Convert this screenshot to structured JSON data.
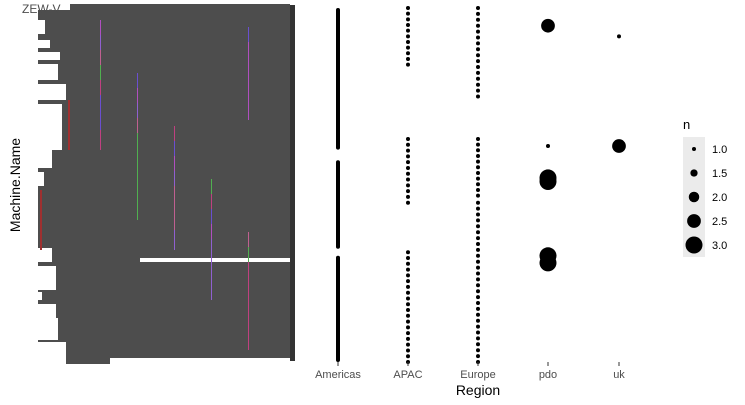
{
  "chart_data": {
    "type": "scatter",
    "xlabel": "Region",
    "ylabel": "Machine.Name",
    "categories": [
      "Americas",
      "APAC",
      "Europe",
      "pdo",
      "uk"
    ],
    "y_top_label": "ZEW-V",
    "legend": {
      "title": "n",
      "position": "right",
      "entries": [
        {
          "label": "1.0",
          "value": 1.0
        },
        {
          "label": "1.5",
          "value": 1.5
        },
        {
          "label": "2.0",
          "value": 2.0
        },
        {
          "label": "2.5",
          "value": 2.5
        },
        {
          "label": "3.0",
          "value": 3.0
        }
      ]
    },
    "size_range": [
      1.0,
      3.0
    ],
    "y_range": [
      0,
      1
    ],
    "grid": false,
    "points": [
      {
        "category": "pdo",
        "y": 0.95,
        "n": 2.5
      },
      {
        "category": "pdo",
        "y": 0.61,
        "n": 1.0
      },
      {
        "category": "pdo",
        "y": 0.52,
        "n": 3.0
      },
      {
        "category": "pdo",
        "y": 0.51,
        "n": 3.0
      },
      {
        "category": "pdo",
        "y": 0.3,
        "n": 3.0
      },
      {
        "category": "pdo",
        "y": 0.28,
        "n": 3.0
      },
      {
        "category": "uk",
        "y": 0.92,
        "n": 1.0
      },
      {
        "category": "uk",
        "y": 0.61,
        "n": 2.5
      }
    ],
    "dense_columns": [
      {
        "category": "Americas",
        "segments": [
          [
            0.0,
            0.3
          ],
          [
            0.32,
            0.57
          ],
          [
            0.6,
            1.0
          ]
        ],
        "n": 1.0
      },
      {
        "category": "APAC",
        "segments": [
          [
            0.0,
            0.31
          ],
          [
            0.45,
            0.63
          ],
          [
            0.84,
            1.0
          ]
        ],
        "n": 1.0
      },
      {
        "category": "Europe",
        "segments": [
          [
            0.0,
            0.45
          ],
          [
            0.47,
            0.63
          ],
          [
            0.75,
            1.0
          ]
        ],
        "n": 1.0
      }
    ]
  }
}
